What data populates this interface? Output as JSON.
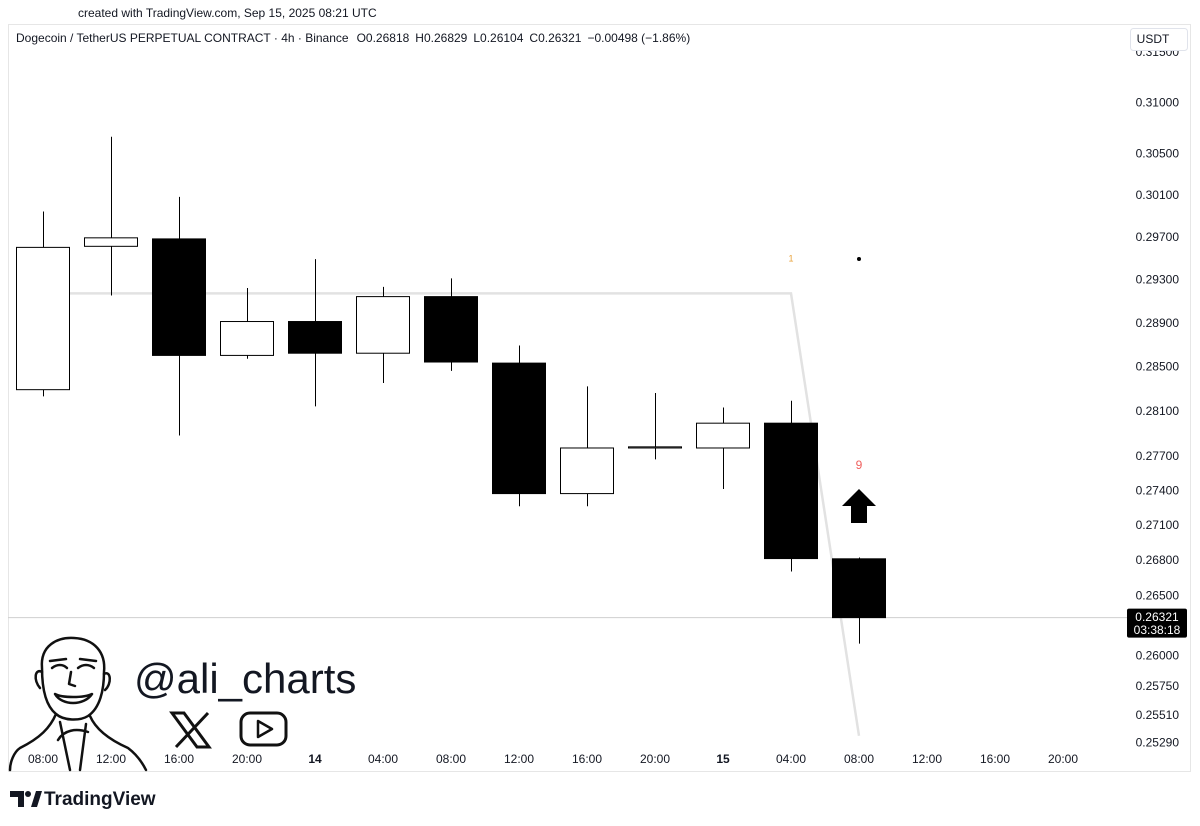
{
  "created": "created with TradingView.com, Sep 15, 2025 08:21 UTC",
  "chart_data": {
    "type": "candlestick",
    "title": "Dogecoin / TetherUS PERPETUAL CONTRACT · 4h · Binance",
    "ohlc_labels": [
      "O0.26818",
      "H0.26829",
      "L0.26104",
      "C0.26321",
      "−0.00498 (−1.86%)"
    ],
    "currency": "USDT",
    "categories": [
      "08:00",
      "12:00",
      "16:00",
      "20:00",
      "14",
      "04:00",
      "08:00",
      "12:00",
      "16:00",
      "20:00",
      "15",
      "04:00",
      "08:00",
      "12:00",
      "16:00",
      "20:00"
    ],
    "open": [
      0.283,
      0.2962,
      0.2969,
      0.2861,
      0.2892,
      0.2863,
      0.2915,
      0.2854,
      0.2738,
      0.2778,
      0.2778,
      0.28,
      0.26818,
      null,
      null,
      null
    ],
    "high": [
      0.2995,
      0.3067,
      0.3009,
      0.2923,
      0.295,
      0.2924,
      0.2932,
      0.287,
      0.2833,
      0.2827,
      0.2814,
      0.282,
      0.26829,
      null,
      null,
      null
    ],
    "low": [
      0.2824,
      0.2916,
      0.2789,
      0.2858,
      0.2815,
      0.2836,
      0.2847,
      0.2727,
      0.2727,
      0.2768,
      0.2742,
      0.2671,
      0.26104,
      null,
      null,
      null
    ],
    "close": [
      0.2961,
      0.297,
      0.2861,
      0.2892,
      0.2863,
      0.2915,
      0.2855,
      0.2738,
      0.2778,
      0.2779,
      0.28,
      0.2682,
      0.26321,
      null,
      null,
      null
    ],
    "up_color": "#ffffff",
    "down_color": "#000000",
    "border_color": "#000000",
    "indicator_line": {
      "color": "#e2e2e2",
      "values": [
        0.2918,
        0.2918,
        0.2918,
        0.2918,
        0.2918,
        0.2918,
        0.2918,
        0.2918,
        0.2918,
        0.2918,
        0.2918,
        0.2918,
        0.2535,
        null,
        null,
        null
      ]
    },
    "signal_labels": [
      null,
      null,
      null,
      null,
      null,
      null,
      null,
      null,
      null,
      null,
      null,
      "1",
      "9",
      null,
      null,
      null
    ],
    "signal_colors": [
      null,
      null,
      null,
      null,
      null,
      null,
      null,
      null,
      null,
      null,
      null,
      "#e8a13a",
      "#f0605e",
      null,
      null,
      null
    ],
    "log_scale": true,
    "grid": false,
    "ylim": [
      0.2506,
      0.3179
    ],
    "yticks": [
      {
        "value": 0.315,
        "label": "0.31500"
      },
      {
        "value": 0.31,
        "label": "0.31000"
      },
      {
        "value": 0.305,
        "label": "0.30500"
      },
      {
        "value": 0.301,
        "label": "0.30100"
      },
      {
        "value": 0.297,
        "label": "0.29700"
      },
      {
        "value": 0.293,
        "label": "0.29300"
      },
      {
        "value": 0.289,
        "label": "0.28900"
      },
      {
        "value": 0.285,
        "label": "0.28500"
      },
      {
        "value": 0.281,
        "label": "0.28100"
      },
      {
        "value": 0.277,
        "label": "0.27700"
      },
      {
        "value": 0.274,
        "label": "0.27400"
      },
      {
        "value": 0.271,
        "label": "0.27100"
      },
      {
        "value": 0.268,
        "label": "0.26800"
      },
      {
        "value": 0.265,
        "label": "0.26500"
      },
      {
        "value": 0.26,
        "label": "0.26000"
      },
      {
        "value": 0.2575,
        "label": "0.25750"
      },
      {
        "value": 0.2551,
        "label": "0.25510"
      },
      {
        "value": 0.2529,
        "label": "0.25290"
      }
    ],
    "last_price_label": "0.26321",
    "countdown": "03:38:18"
  },
  "watermark": {
    "handle": "@ali_charts"
  },
  "footer": {
    "brand": "TradingView"
  }
}
